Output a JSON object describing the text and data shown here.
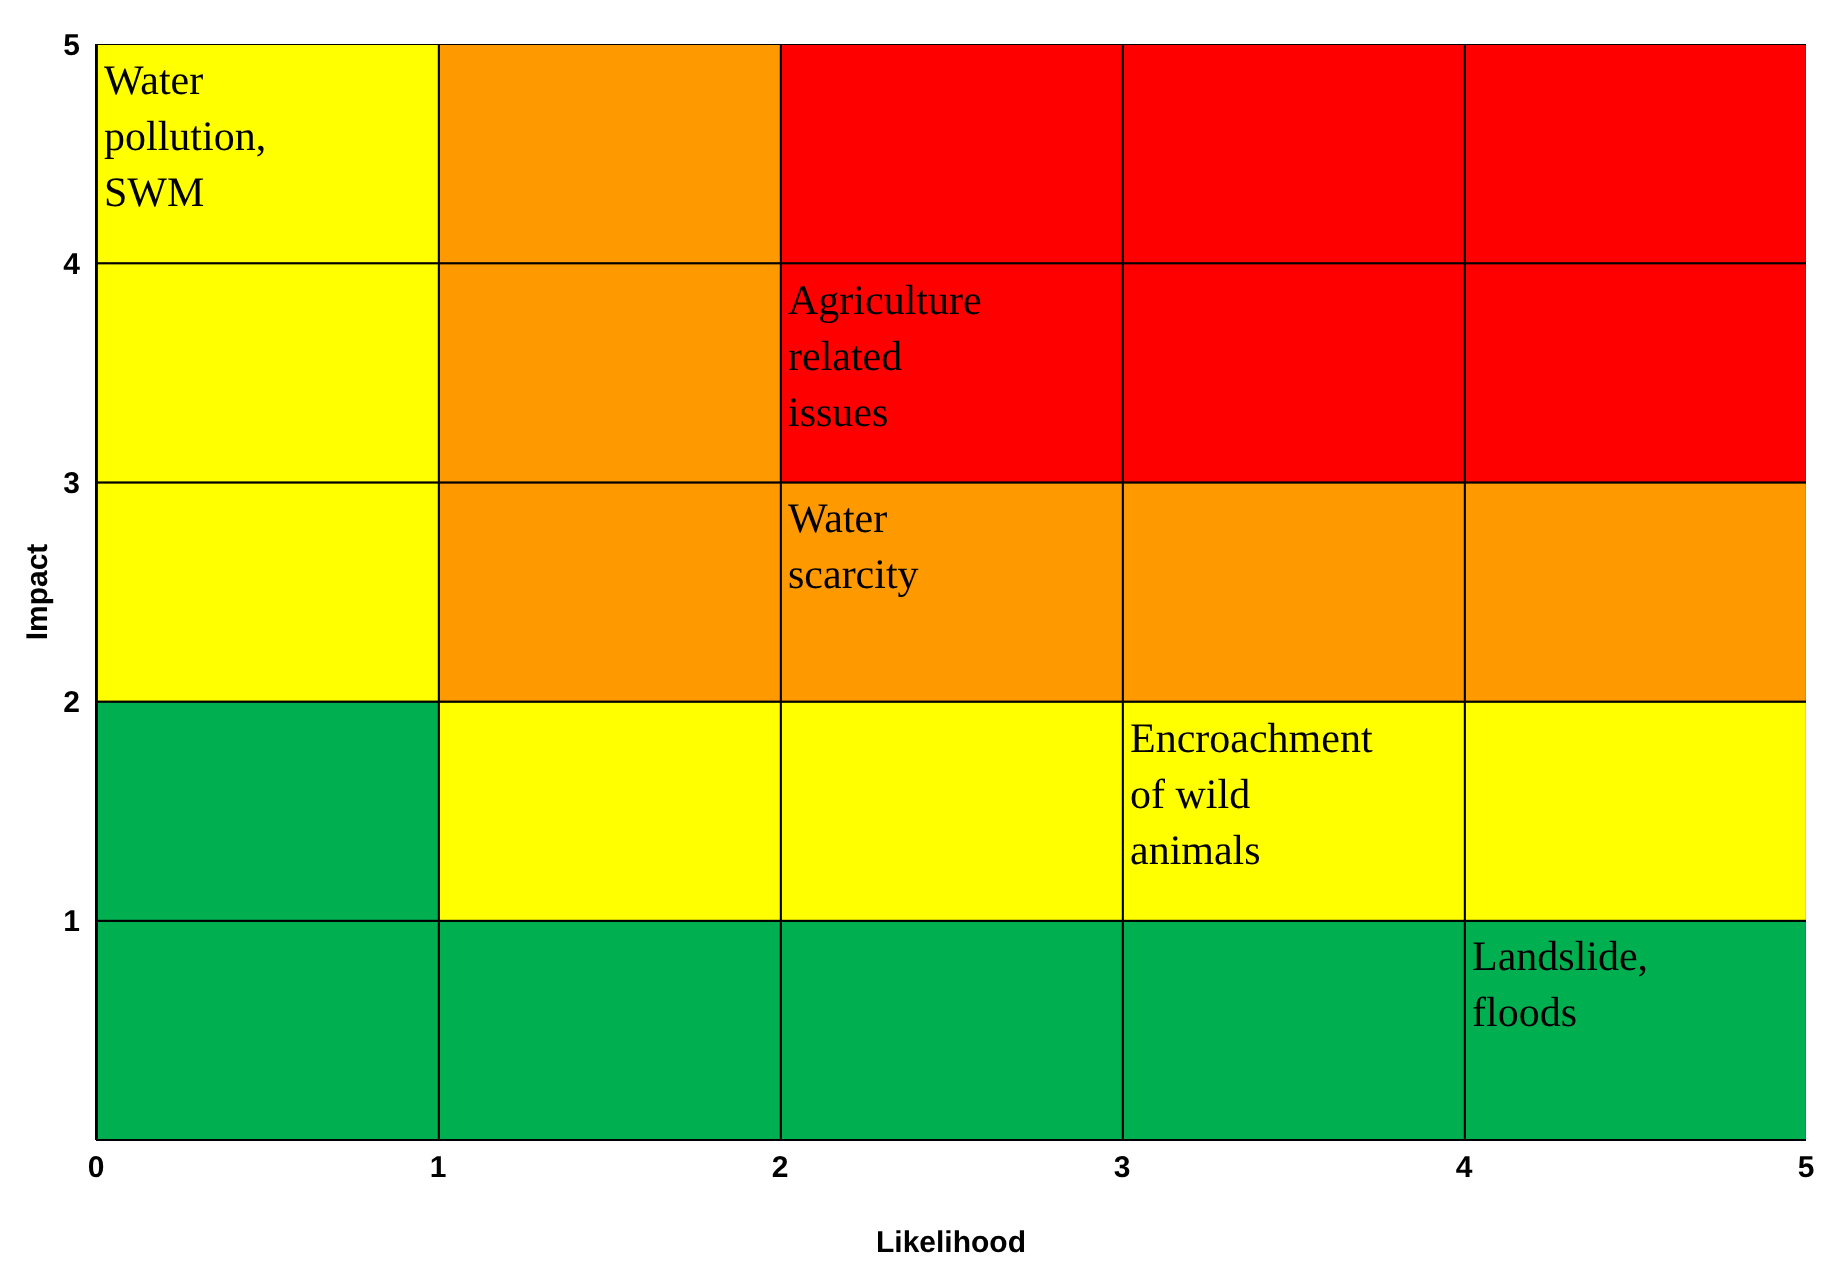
{
  "chart_data": {
    "type": "bar",
    "stacked": true,
    "xlabel": "Likelihood",
    "ylabel": "Impact",
    "x": [
      0.5,
      1.5,
      2.5,
      3.5,
      4.5
    ],
    "xlim": [
      0,
      5
    ],
    "ylim": [
      0,
      5
    ],
    "xticks": [
      0,
      1,
      2,
      3,
      4,
      5
    ],
    "yticks": [
      1,
      2,
      3,
      4,
      5
    ],
    "series": [
      {
        "values": [
          1,
          1,
          1,
          1,
          1
        ],
        "colors": [
          "#00b050",
          "#00b050",
          "#00b050",
          "#00b050",
          "#00b050"
        ]
      },
      {
        "values": [
          1,
          1,
          1,
          1,
          1
        ],
        "colors": [
          "#00b050",
          "#ffff00",
          "#ffff00",
          "#ffff00",
          "#ffff00"
        ]
      },
      {
        "values": [
          1,
          1,
          1,
          1,
          1
        ],
        "colors": [
          "#ffff00",
          "#ff9900",
          "#ff9900",
          "#ff9900",
          "#ff9900"
        ]
      },
      {
        "values": [
          1,
          1,
          1,
          1,
          1
        ],
        "colors": [
          "#ffff00",
          "#ff9900",
          "#ff0000",
          "#ff0000",
          "#ff0000"
        ]
      },
      {
        "values": [
          1,
          1,
          1,
          1,
          1
        ],
        "colors": [
          "#ffff00",
          "#ff9900",
          "#ff0000",
          "#ff0000",
          "#ff0000"
        ]
      }
    ],
    "annotations": [
      "Water pollution, SWM",
      "Agriculture related issues",
      "Water  scarcity",
      "Encroachment of wild animals",
      "Landslide, floods"
    ]
  }
}
